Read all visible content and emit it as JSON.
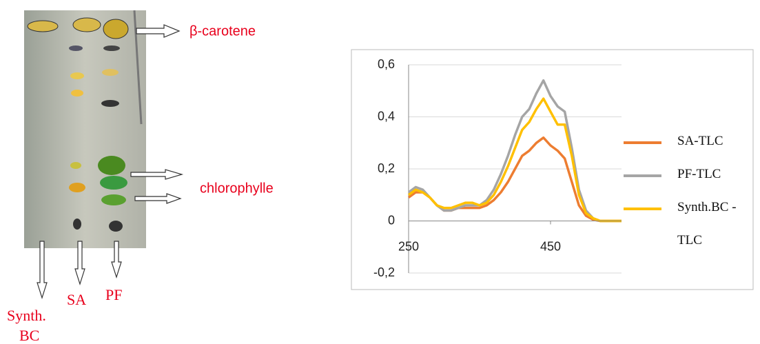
{
  "tlc_plate": {
    "annotations": {
      "beta_carotene": "β-carotene",
      "chlorophyll": "chlorophylle"
    },
    "lanes": [
      [
        "Synth.",
        "BC"
      ],
      [
        "SA"
      ],
      [
        "PF"
      ]
    ]
  },
  "chart_data": {
    "type": "line",
    "x": [
      250,
      260,
      270,
      280,
      290,
      300,
      310,
      320,
      330,
      340,
      350,
      360,
      370,
      380,
      390,
      400,
      410,
      420,
      430,
      440,
      450,
      460,
      470,
      480,
      490,
      500,
      510,
      520,
      530,
      540,
      550
    ],
    "series": [
      {
        "name": "SA-TLC",
        "color": "#ed7d31",
        "values": [
          0.09,
          0.11,
          0.11,
          0.09,
          0.06,
          0.04,
          0.04,
          0.05,
          0.05,
          0.05,
          0.05,
          0.06,
          0.08,
          0.11,
          0.15,
          0.2,
          0.25,
          0.27,
          0.3,
          0.32,
          0.29,
          0.27,
          0.24,
          0.15,
          0.06,
          0.02,
          0.005,
          0,
          0,
          0,
          0
        ]
      },
      {
        "name": "PF-TLC",
        "color": "#a5a5a5",
        "values": [
          0.11,
          0.13,
          0.12,
          0.09,
          0.06,
          0.04,
          0.04,
          0.05,
          0.06,
          0.06,
          0.06,
          0.08,
          0.12,
          0.18,
          0.25,
          0.33,
          0.4,
          0.43,
          0.49,
          0.54,
          0.48,
          0.44,
          0.42,
          0.28,
          0.12,
          0.04,
          0.01,
          0,
          0,
          0,
          0
        ]
      },
      {
        "name": "Synth.BC -TLC",
        "color": "#ffc000",
        "values": [
          0.1,
          0.12,
          0.11,
          0.09,
          0.06,
          0.05,
          0.05,
          0.06,
          0.07,
          0.07,
          0.06,
          0.07,
          0.1,
          0.15,
          0.21,
          0.28,
          0.35,
          0.38,
          0.43,
          0.47,
          0.42,
          0.37,
          0.37,
          0.25,
          0.1,
          0.03,
          0.01,
          0,
          0,
          0,
          0
        ]
      }
    ],
    "xlim": [
      250,
      550
    ],
    "xticks": [
      250,
      450
    ],
    "ylim": [
      -0.2,
      0.6
    ],
    "yticks": [
      {
        "value": -0.2,
        "label": "-0,2"
      },
      0,
      {
        "value": 0.2,
        "label": "0,2"
      },
      {
        "value": 0.4,
        "label": "0,4"
      },
      {
        "value": 0.6,
        "label": "0,6"
      }
    ],
    "grid": true,
    "legend": "right"
  }
}
